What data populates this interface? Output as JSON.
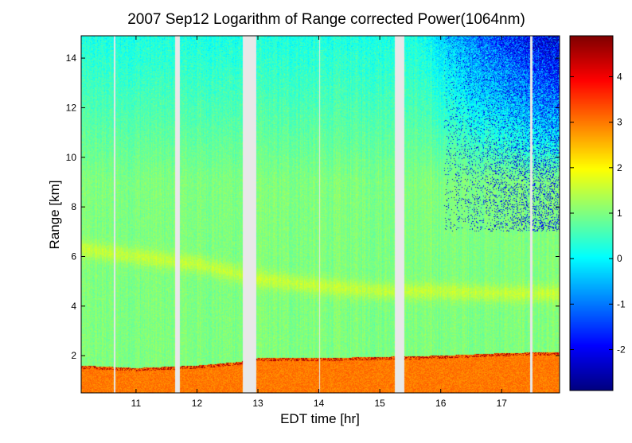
{
  "chart_data": {
    "type": "heatmap",
    "title": "2007 Sep12  Logarithm of Range corrected Power(1064nm)",
    "xlabel": "EDT time [hr]",
    "ylabel": "Range [km]",
    "xlim": [
      10.1,
      17.95
    ],
    "ylim": [
      0.5,
      14.9
    ],
    "xticks": [
      11,
      12,
      13,
      14,
      15,
      16,
      17
    ],
    "yticks": [
      2,
      4,
      6,
      8,
      10,
      12,
      14
    ],
    "colorbar": {
      "clim": [
        -2.9,
        4.9
      ],
      "ticks": [
        -2,
        -1,
        0,
        1,
        2,
        3,
        4
      ],
      "colormap": "jet"
    },
    "data_gaps_hr": [
      [
        10.64,
        10.66
      ],
      [
        11.64,
        11.72
      ],
      [
        12.75,
        12.98
      ],
      [
        14.0,
        14.02
      ],
      [
        15.25,
        15.4
      ],
      [
        17.47,
        17.51
      ]
    ],
    "boundary_layer_top_km": [
      {
        "t": 10.1,
        "km": 1.6
      },
      {
        "t": 11.0,
        "km": 1.5
      },
      {
        "t": 12.0,
        "km": 1.6
      },
      {
        "t": 12.7,
        "km": 1.75
      },
      {
        "t": 13.0,
        "km": 1.9
      },
      {
        "t": 14.0,
        "km": 1.9
      },
      {
        "t": 15.0,
        "km": 1.95
      },
      {
        "t": 16.0,
        "km": 2.0
      },
      {
        "t": 17.0,
        "km": 2.1
      },
      {
        "t": 17.95,
        "km": 2.15
      }
    ],
    "aerosol_layer_km": [
      {
        "t": 10.1,
        "km": 6.3
      },
      {
        "t": 11.0,
        "km": 6.0
      },
      {
        "t": 12.0,
        "km": 5.7
      },
      {
        "t": 13.0,
        "km": 5.1
      },
      {
        "t": 14.0,
        "km": 4.8
      },
      {
        "t": 15.0,
        "km": 4.6
      },
      {
        "t": 16.0,
        "km": 4.6
      },
      {
        "t": 17.0,
        "km": 4.5
      },
      {
        "t": 17.95,
        "km": 4.5
      }
    ],
    "value_summary": {
      "near_surface": 3.0,
      "mid_troposphere": 1.0,
      "aerosol_layer": 1.5,
      "upper_range_noise_min": -2.5
    }
  }
}
